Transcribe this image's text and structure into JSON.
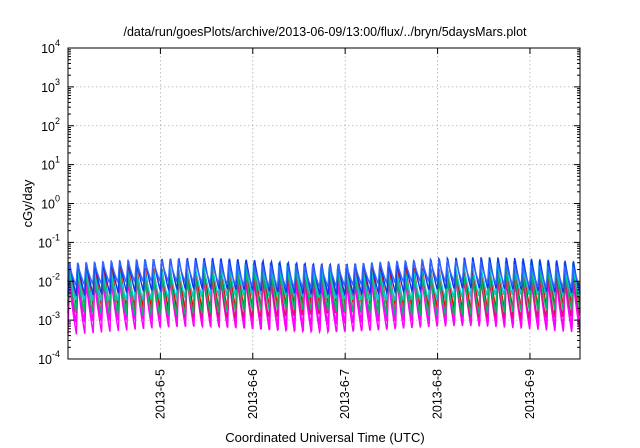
{
  "chart_data": {
    "type": "line",
    "title": "/data/run/goesPlots/archive/2013-06-09/13:00/flux/../bryn/5daysMars.plot",
    "xlabel": "Coordinated Universal Time (UTC)",
    "ylabel": "cGy/day",
    "yscale": "log",
    "ylim": [
      0.0001,
      10000
    ],
    "y_ticks": [
      {
        "value": 0.0001,
        "base": "10",
        "exp": "-4"
      },
      {
        "value": 0.001,
        "base": "10",
        "exp": "-3"
      },
      {
        "value": 0.01,
        "base": "10",
        "exp": "-2"
      },
      {
        "value": 0.1,
        "base": "10",
        "exp": "-1"
      },
      {
        "value": 1,
        "base": "10",
        "exp": "0"
      },
      {
        "value": 10,
        "base": "10",
        "exp": "1"
      },
      {
        "value": 100,
        "base": "10",
        "exp": "2"
      },
      {
        "value": 1000,
        "base": "10",
        "exp": "3"
      },
      {
        "value": 10000,
        "base": "10",
        "exp": "4"
      }
    ],
    "xlim": [
      "2013-06-04 00:00",
      "2013-06-09 13:00"
    ],
    "x_ticks": [
      "2013-6-5",
      "2013-6-6",
      "2013-6-7",
      "2013-6-8",
      "2013-6-9"
    ],
    "x_tick_dates": [
      "2013-06-05",
      "2013-06-06",
      "2013-06-07",
      "2013-06-08",
      "2013-06-09"
    ],
    "grid": true,
    "legend": "none",
    "pattern": "sawtooth, 11 cycles per day",
    "cycles_per_day": 11,
    "series": [
      {
        "color": "#ff00ff",
        "peak": 0.012,
        "trough": 0.0005
      },
      {
        "color": "#ff00ff",
        "peak": 0.016,
        "trough": 0.0008
      },
      {
        "color": "#e01070",
        "peak": 0.02,
        "trough": 0.0012
      },
      {
        "color": "#ee0000",
        "peak": 0.03,
        "trough": 0.002
      },
      {
        "color": "#00bb66",
        "peak": 0.018,
        "trough": 0.0015
      },
      {
        "color": "#00cccc",
        "peak": 0.028,
        "trough": 0.0035
      },
      {
        "color": "#1133ee",
        "peak": 0.04,
        "trough": 0.005
      },
      {
        "color": "#3366ff",
        "peak": 0.032,
        "trough": 0.008
      }
    ]
  }
}
